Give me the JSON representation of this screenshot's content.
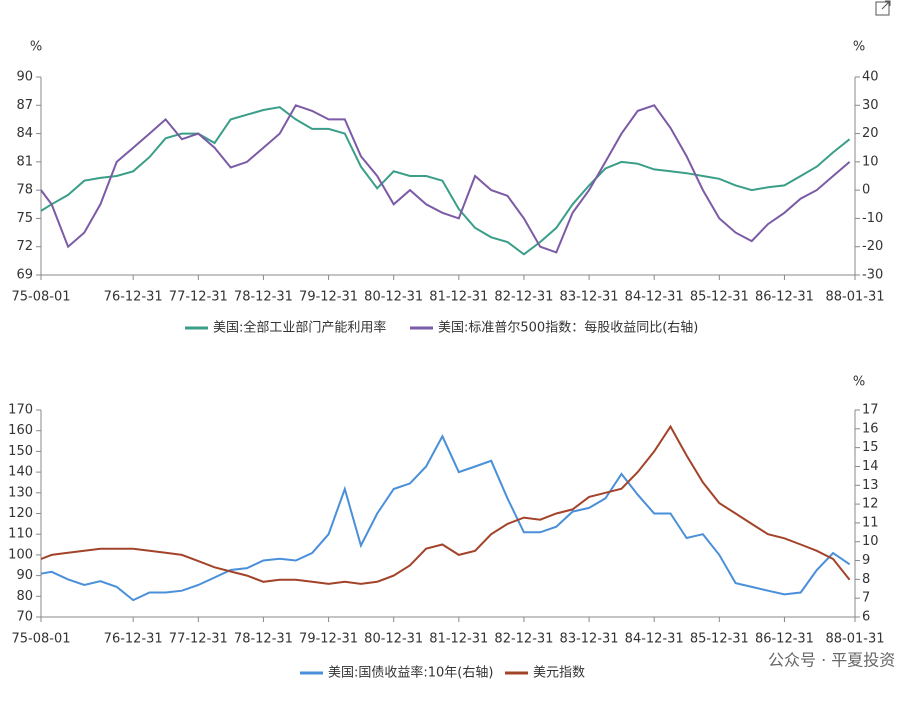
{
  "chart_data": [
    {
      "type": "line",
      "x": [
        "75-08-01",
        "75-09-30",
        "75-12-31",
        "76-03-31",
        "76-06-30",
        "76-09-30",
        "76-12-31",
        "77-03-31",
        "77-06-30",
        "77-09-30",
        "77-12-31",
        "78-03-31",
        "78-06-30",
        "78-09-30",
        "78-12-31",
        "79-03-31",
        "79-06-30",
        "79-09-30",
        "79-12-31",
        "80-03-31",
        "80-06-30",
        "80-09-30",
        "80-12-31",
        "81-03-31",
        "81-06-30",
        "81-09-30",
        "81-12-31",
        "82-03-31",
        "82-06-30",
        "82-09-30",
        "82-12-31",
        "83-03-31",
        "83-06-30",
        "83-09-30",
        "83-12-31",
        "84-03-31",
        "84-06-30",
        "84-09-30",
        "84-12-31",
        "85-03-31",
        "85-06-30",
        "85-09-30",
        "85-12-31",
        "86-03-31",
        "86-06-30",
        "86-09-30",
        "86-12-31",
        "87-03-31",
        "87-06-30",
        "87-09-30",
        "87-12-31"
      ],
      "xlim": [
        "75-08-01",
        "88-01-31"
      ],
      "xticks": [
        "75-08-01",
        "76-12-31",
        "77-12-31",
        "78-12-31",
        "79-12-31",
        "80-12-31",
        "81-12-31",
        "82-12-31",
        "83-12-31",
        "84-12-31",
        "85-12-31",
        "86-12-31",
        "88-01-31"
      ],
      "y_unit": "%",
      "y2_unit": "%",
      "ylim": [
        69,
        90
      ],
      "yticks": [
        69,
        72,
        75,
        78,
        81,
        84,
        87,
        90
      ],
      "y2lim": [
        -30,
        40
      ],
      "y2ticks": [
        -30,
        -20,
        -10,
        0,
        10,
        20,
        30,
        40
      ],
      "series": [
        {
          "name": "美国:全部工业部门产能利用率",
          "color": "#3a9e88",
          "values": [
            75.8,
            76.5,
            77.5,
            79.0,
            79.3,
            79.5,
            80.0,
            81.5,
            83.5,
            84.0,
            84.0,
            83.0,
            85.5,
            86.0,
            86.5,
            86.8,
            85.5,
            84.5,
            84.5,
            84.0,
            80.5,
            78.2,
            80.0,
            79.5,
            79.5,
            79.0,
            76.0,
            74.0,
            73.0,
            72.5,
            71.2,
            72.5,
            74.0,
            76.5,
            78.5,
            80.3,
            81.0,
            80.8,
            80.2,
            80.0,
            79.8,
            79.5,
            79.2,
            78.5,
            78.0,
            78.3,
            78.5,
            79.5,
            80.5,
            82.0,
            83.4
          ]
        },
        {
          "name": "美国:标准普尔500指数：每股收益同比(右轴)",
          "color": "#7b5aa6",
          "axis": "y2",
          "values": [
            0,
            -5,
            -20,
            -15,
            -5,
            10,
            15,
            20,
            25,
            18,
            20,
            15,
            8,
            10,
            15,
            20,
            30,
            28,
            25,
            25,
            12,
            5,
            -5,
            0,
            -5,
            -8,
            -10,
            5,
            0,
            -2,
            -10,
            -20,
            -22,
            -8,
            0,
            10,
            20,
            28,
            30,
            22,
            12,
            0,
            -10,
            -15,
            -18,
            -12,
            -8,
            -3,
            0,
            5,
            10
          ]
        }
      ]
    },
    {
      "type": "line",
      "x": [
        "75-08-01",
        "75-09-30",
        "75-12-31",
        "76-03-31",
        "76-06-30",
        "76-09-30",
        "76-12-31",
        "77-03-31",
        "77-06-30",
        "77-09-30",
        "77-12-31",
        "78-03-31",
        "78-06-30",
        "78-09-30",
        "78-12-31",
        "79-03-31",
        "79-06-30",
        "79-09-30",
        "79-12-31",
        "80-03-31",
        "80-06-30",
        "80-09-30",
        "80-12-31",
        "81-03-31",
        "81-06-30",
        "81-09-30",
        "81-12-31",
        "82-03-31",
        "82-06-30",
        "82-09-30",
        "82-12-31",
        "83-03-31",
        "83-06-30",
        "83-09-30",
        "83-12-31",
        "84-03-31",
        "84-06-30",
        "84-09-30",
        "84-12-31",
        "85-03-31",
        "85-06-30",
        "85-09-30",
        "85-12-31",
        "86-03-31",
        "86-06-30",
        "86-09-30",
        "86-12-31",
        "87-03-31",
        "87-06-30",
        "87-09-30",
        "87-12-31"
      ],
      "xlim": [
        "75-08-01",
        "88-01-31"
      ],
      "xticks": [
        "75-08-01",
        "76-12-31",
        "77-12-31",
        "78-12-31",
        "79-12-31",
        "80-12-31",
        "81-12-31",
        "82-12-31",
        "83-12-31",
        "84-12-31",
        "85-12-31",
        "86-12-31",
        "88-01-31"
      ],
      "y2_unit": "%",
      "ylim": [
        70,
        170
      ],
      "yticks": [
        70,
        80,
        90,
        100,
        110,
        120,
        130,
        140,
        150,
        160,
        170
      ],
      "y2lim": [
        6,
        17
      ],
      "y2ticks": [
        6,
        7,
        8,
        9,
        10,
        11,
        12,
        13,
        14,
        15,
        16,
        17
      ],
      "series": [
        {
          "name": "美国:国债收益率:10年(右轴)",
          "color": "#4a8fd9",
          "axis": "y2",
          "values": [
            8.3,
            8.4,
            8.0,
            7.7,
            7.9,
            7.6,
            6.9,
            7.3,
            7.3,
            7.4,
            7.7,
            8.1,
            8.5,
            8.6,
            9.0,
            9.1,
            9.0,
            9.4,
            10.4,
            12.8,
            9.8,
            11.5,
            12.8,
            13.1,
            14.0,
            15.6,
            13.7,
            14.0,
            14.3,
            12.3,
            10.5,
            10.5,
            10.8,
            11.6,
            11.8,
            12.3,
            13.6,
            12.5,
            11.5,
            11.5,
            10.2,
            10.4,
            9.3,
            7.8,
            7.6,
            7.4,
            7.2,
            7.3,
            8.5,
            9.4,
            8.8
          ]
        },
        {
          "name": "美元指数",
          "color": "#a3432a",
          "values": [
            98,
            100,
            101,
            102,
            103,
            103,
            103,
            102,
            101,
            100,
            97,
            94,
            92,
            90,
            87,
            88,
            88,
            87,
            86,
            87,
            86,
            87,
            90,
            95,
            103,
            105,
            100,
            102,
            110,
            115,
            118,
            117,
            120,
            122,
            128,
            130,
            132,
            140,
            150,
            162,
            148,
            135,
            125,
            120,
            115,
            110,
            108,
            105,
            102,
            98,
            88
          ]
        }
      ]
    }
  ],
  "watermark": "公众号 · 平夏投资"
}
